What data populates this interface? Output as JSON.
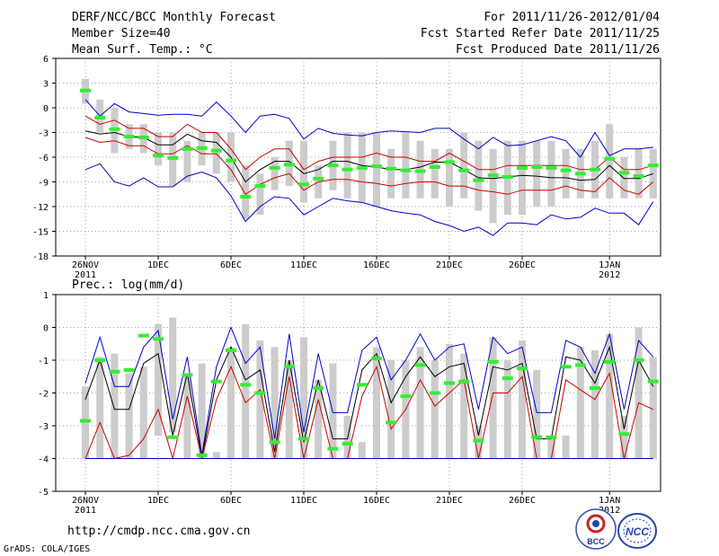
{
  "header": {
    "title": "DERF/NCC/BCC Monthly Forecast",
    "member_size": "Member Size=40",
    "variable": "Mean Surf. Temp.: °C",
    "period": "For 2011/11/26-2012/01/04",
    "start_date": "Fcst Started Refer Date 2011/11/25",
    "produced_date": "Fcst Produced Date 2011/11/26"
  },
  "footer": {
    "url": "http://cmdp.ncc.cma.gov.cn",
    "credit": "GrADS: COLA/IGES",
    "logo_bcc": "BCC",
    "logo_ncc": "NCC"
  },
  "colors": {
    "max_min": "#0000cc",
    "sd_band": "#cc0000",
    "mean": "#000000",
    "median": "#33ee33",
    "box": "#cccccc"
  },
  "chart_data": [
    {
      "type": "box-ensemble",
      "title": "Mean Surf. Temp.: °C",
      "ylim": [
        -18,
        6
      ],
      "yticks": [
        -18,
        -15,
        -12,
        -9,
        -6,
        -3,
        0,
        3,
        6
      ],
      "xticks": [
        {
          "day": 0,
          "label": "26NOV",
          "sub": "2011"
        },
        {
          "day": 5,
          "label": "1DEC",
          "sub": ""
        },
        {
          "day": 10,
          "label": "6DEC",
          "sub": ""
        },
        {
          "day": 15,
          "label": "11DEC",
          "sub": ""
        },
        {
          "day": 20,
          "label": "16DEC",
          "sub": ""
        },
        {
          "day": 25,
          "label": "21DEC",
          "sub": ""
        },
        {
          "day": 30,
          "label": "26DEC",
          "sub": ""
        },
        {
          "day": 36,
          "label": "1JAN",
          "sub": "2012"
        }
      ],
      "days": 40,
      "box_low": [
        0.5,
        -3,
        -5.5,
        -5,
        -5.5,
        -7,
        -9.5,
        -9,
        -7,
        -8,
        -9,
        -13.5,
        -13,
        -10,
        -9.5,
        -11.5,
        -11,
        -10,
        -11,
        -11.5,
        -12,
        -11,
        -11,
        -11,
        -11,
        -12,
        -11,
        -12.5,
        -14,
        -13,
        -13,
        -12,
        -12,
        -11,
        -11,
        -11,
        -11,
        -11,
        -11,
        -11
      ],
      "box_high": [
        3.5,
        1,
        0,
        -2,
        -2,
        -3,
        -3,
        -4,
        -3,
        -3,
        -3,
        -7,
        -8,
        -6,
        -4,
        -4,
        -7,
        -4,
        -3,
        -3,
        -3,
        -5,
        -3,
        -4,
        -5,
        -5,
        -3,
        -4,
        -5,
        -4,
        -4,
        -4,
        -4,
        -5,
        -5,
        -4,
        -2,
        -6,
        -5,
        -5
      ],
      "median": [
        2.1,
        -1.2,
        -2.6,
        -3.5,
        -3.6,
        -5.8,
        -6.1,
        -5,
        -4.9,
        -5.2,
        -6.4,
        -10.8,
        -9.5,
        -7.3,
        -6.9,
        -9.3,
        -8.6,
        -7,
        -7.5,
        -7.3,
        -7.1,
        -7.4,
        -7.6,
        -7.7,
        -7.2,
        -6.6,
        -7.6,
        -8.8,
        -8.2,
        -8.4,
        -7.3,
        -7.2,
        -7.3,
        -7.6,
        -8,
        -7.5,
        -6.2,
        -7.9,
        -8.3,
        -7
      ],
      "series": [
        {
          "name": "max",
          "values": [
            1,
            -1,
            0.5,
            -0.5,
            -0.7,
            -0.9,
            -0.8,
            -0.8,
            -1,
            0.7,
            -1,
            -3,
            -1,
            -0.8,
            -1.3,
            -3.8,
            -2.5,
            -3.1,
            -3.3,
            -3.4,
            -3,
            -2.8,
            -2.9,
            -3,
            -2.5,
            -2.5,
            -3.8,
            -5,
            -3.6,
            -4.6,
            -4.5,
            -4,
            -3.5,
            -4,
            -6,
            -3,
            -5.8,
            -5,
            -5,
            -4.8
          ]
        },
        {
          "name": "mean_plus_sd",
          "values": [
            -1,
            -2,
            -1.5,
            -2.5,
            -2.5,
            -3.5,
            -3.5,
            -2,
            -3,
            -3,
            -5,
            -7.5,
            -6,
            -5,
            -5,
            -7.5,
            -6.5,
            -6,
            -6,
            -6,
            -5.5,
            -6,
            -6,
            -6.5,
            -6.5,
            -5.5,
            -6.5,
            -7.5,
            -7.5,
            -7,
            -7,
            -7,
            -7,
            -7,
            -7.5,
            -7.5,
            -6,
            -7.5,
            -7.5,
            -7
          ]
        },
        {
          "name": "mean",
          "values": [
            -2.8,
            -3.2,
            -3,
            -3.5,
            -3.6,
            -4.5,
            -4.5,
            -3.2,
            -4,
            -4.2,
            -6,
            -9,
            -7.5,
            -6.5,
            -6.5,
            -8,
            -7.5,
            -6.5,
            -6.5,
            -7,
            -7.2,
            -7.5,
            -7.5,
            -7.2,
            -6.6,
            -6.6,
            -7.5,
            -8.5,
            -8.6,
            -8.4,
            -8.2,
            -8.3,
            -8.5,
            -8.5,
            -8.8,
            -8.7,
            -7,
            -8.6,
            -8.6,
            -8
          ]
        },
        {
          "name": "mean_minus_sd",
          "values": [
            -3.6,
            -4.2,
            -4,
            -4.6,
            -4.6,
            -5.6,
            -5.6,
            -4.6,
            -5.6,
            -5.6,
            -7.5,
            -10.5,
            -9.3,
            -8.5,
            -8,
            -10,
            -9,
            -8.7,
            -8.7,
            -9,
            -9.2,
            -9.5,
            -9.2,
            -9,
            -9,
            -9.5,
            -9.5,
            -10,
            -10.2,
            -10.5,
            -10,
            -10,
            -10,
            -9.5,
            -10,
            -10.2,
            -8.5,
            -10,
            -10.5,
            -9
          ]
        },
        {
          "name": "min",
          "values": [
            -7.5,
            -6.8,
            -9,
            -9.5,
            -8.5,
            -9.6,
            -9.6,
            -8.3,
            -7.8,
            -8.5,
            -10.7,
            -13.8,
            -12,
            -10.8,
            -11,
            -13,
            -12,
            -11,
            -11.3,
            -11.5,
            -12,
            -12.5,
            -12.8,
            -13,
            -13.8,
            -14.3,
            -15,
            -14.5,
            -15.5,
            -14,
            -14,
            -14.2,
            -13,
            -13.5,
            -13.3,
            -12.2,
            -12.8,
            -12.8,
            -14.2,
            -11.4
          ]
        }
      ]
    },
    {
      "type": "box-ensemble",
      "title": "Prec.: log(mm/d)",
      "ylim": [
        -5,
        1
      ],
      "yticks": [
        -5,
        -4,
        -3,
        -2,
        -1,
        0,
        1
      ],
      "xticks": [
        {
          "day": 0,
          "label": "26NOV",
          "sub": "2011"
        },
        {
          "day": 5,
          "label": "1DEC",
          "sub": ""
        },
        {
          "day": 10,
          "label": "6DEC",
          "sub": ""
        },
        {
          "day": 15,
          "label": "11DEC",
          "sub": ""
        },
        {
          "day": 20,
          "label": "16DEC",
          "sub": ""
        },
        {
          "day": 25,
          "label": "21DEC",
          "sub": ""
        },
        {
          "day": 30,
          "label": "26DEC",
          "sub": ""
        },
        {
          "day": 36,
          "label": "1JAN",
          "sub": "2012"
        }
      ],
      "days": 40,
      "box_low": [
        -4,
        -4,
        -4,
        -4,
        -4,
        -3.3,
        -3.2,
        -4,
        -4,
        -4,
        -4,
        -4,
        -4,
        -4,
        -4,
        -4,
        -4,
        -4,
        -4,
        -4,
        -4,
        -4,
        -4,
        -4,
        -4,
        -4,
        -4,
        -4,
        -4,
        -4,
        -4,
        -4,
        -4,
        -4,
        -4,
        -4,
        -4,
        -4,
        -4,
        -4
      ],
      "box_high": [
        -1.8,
        -0.9,
        -0.8,
        -1.4,
        -1.2,
        0.1,
        0.3,
        -1.4,
        -1.1,
        -3.8,
        -0.6,
        0.1,
        -0.4,
        -0.6,
        -1,
        -0.3,
        -1.6,
        -1.1,
        -2.7,
        -3.5,
        -0.6,
        -1,
        -1,
        -0.6,
        -1,
        -0.5,
        -0.8,
        -3,
        -0.3,
        -1,
        -0.4,
        -1.3,
        -3.3,
        -3.3,
        -0.6,
        -0.7,
        -0.2,
        -2.7,
        0,
        -0.9
      ],
      "median": [
        -2.85,
        -1,
        -1.35,
        -1.3,
        -0.25,
        -0.35,
        -3.35,
        -1.45,
        -3.9,
        -1.65,
        -0.7,
        -1.75,
        -2,
        -3.5,
        -1.2,
        -3.4,
        -1.85,
        -3.7,
        -3.55,
        -1.75,
        -0.95,
        -2.9,
        -2.1,
        -1.15,
        -2,
        -1.7,
        -1.65,
        -3.45,
        -1.05,
        -1.55,
        -1.25,
        -3.35,
        -3.35,
        -1.2,
        -1.15,
        -1.85,
        -1.05,
        -3.25,
        -1,
        -1.65
      ],
      "series": [
        {
          "name": "max",
          "values": [
            -1.7,
            -0.3,
            -1.8,
            -1.8,
            -0.6,
            -0.1,
            -2.8,
            -0.9,
            -3.9,
            -1.2,
            0,
            -1.1,
            -0.6,
            -3.4,
            -0.2,
            -3.2,
            -0.8,
            -2.6,
            -2.6,
            -0.7,
            -0.3,
            -1.6,
            -1,
            -0.2,
            -1,
            -0.6,
            -0.5,
            -2.5,
            -0.3,
            -0.8,
            -0.6,
            -2.6,
            -2.6,
            -0.4,
            -0.6,
            -1.4,
            -0.2,
            -2.5,
            -0.4,
            -0.9
          ]
        },
        {
          "name": "mean",
          "values": [
            -2.2,
            -1,
            -2.5,
            -2.5,
            -1.1,
            -0.8,
            -3.3,
            -1.4,
            -4,
            -1.6,
            -0.6,
            -1.6,
            -1.3,
            -3.8,
            -1,
            -3.5,
            -1.6,
            -3.4,
            -3.4,
            -1.3,
            -0.8,
            -2.3,
            -1.5,
            -0.9,
            -1.5,
            -1.2,
            -1.1,
            -3.3,
            -1.2,
            -1.3,
            -1.1,
            -3.4,
            -3.4,
            -0.9,
            -1,
            -1.7,
            -0.6,
            -3.1,
            -1,
            -1.8
          ]
        },
        {
          "name": "mean_minus_sd",
          "values": [
            -4,
            -2.9,
            -4,
            -3.9,
            -3.4,
            -2.5,
            -4,
            -2.1,
            -4,
            -2.2,
            -1.2,
            -2.3,
            -1.9,
            -4,
            -1.5,
            -4,
            -2.2,
            -4,
            -4,
            -2.1,
            -1.2,
            -3.1,
            -2.5,
            -1.6,
            -2.4,
            -2,
            -1.6,
            -4,
            -2,
            -2,
            -1.5,
            -4,
            -4,
            -1.6,
            -1.9,
            -2.2,
            -1.4,
            -4,
            -2.3,
            -2.5
          ]
        },
        {
          "name": "min",
          "values": [
            -4,
            -4,
            -4,
            -4,
            -4,
            -4,
            -4,
            -4,
            -4,
            -4,
            -4,
            -4,
            -4,
            -4,
            -4,
            -4,
            -4,
            -4,
            -4,
            -4,
            -4,
            -4,
            -4,
            -4,
            -4,
            -4,
            -4,
            -4,
            -4,
            -4,
            -4,
            -4,
            -4,
            -4,
            -4,
            -4,
            -4,
            -4,
            -4,
            -4
          ]
        }
      ]
    }
  ]
}
